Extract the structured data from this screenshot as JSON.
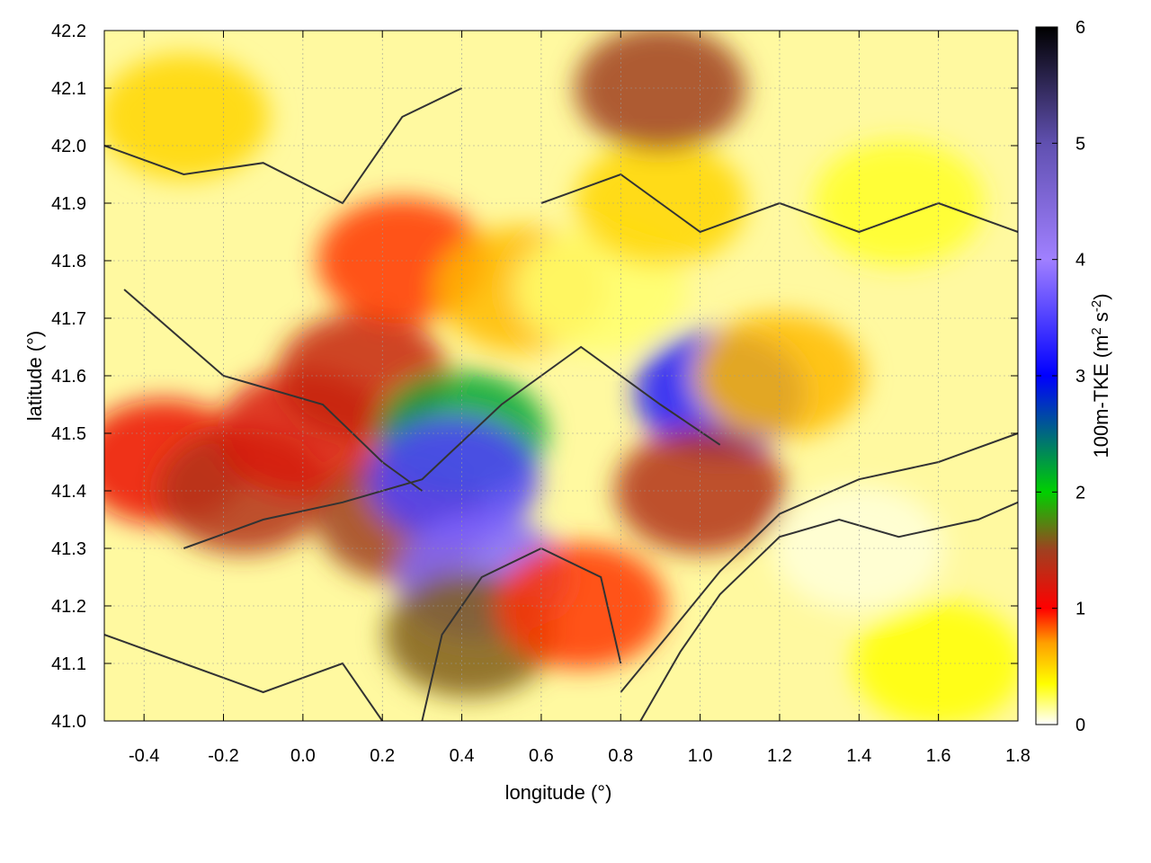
{
  "chart_data": {
    "type": "heatmap",
    "title": "",
    "xlabel": "longitude (°)",
    "ylabel": "latitude (°)",
    "xlim": [
      -0.5,
      1.8
    ],
    "ylim": [
      41.0,
      42.2
    ],
    "x_ticks": [
      -0.4,
      -0.2,
      0.0,
      0.2,
      0.4,
      0.6,
      0.8,
      1.0,
      1.2,
      1.4,
      1.6,
      1.8
    ],
    "x_tick_labels": [
      "-0.4",
      "-0.2",
      "0.0",
      "0.2",
      "0.4",
      "0.6",
      "0.8",
      "1.0",
      "1.2",
      "1.4",
      "1.6",
      "1.8"
    ],
    "y_ticks": [
      41.0,
      41.1,
      41.2,
      41.3,
      41.4,
      41.5,
      41.6,
      41.7,
      41.8,
      41.9,
      42.0,
      42.1,
      42.2
    ],
    "y_tick_labels": [
      "41.0",
      "41.1",
      "41.2",
      "41.3",
      "41.4",
      "41.5",
      "41.6",
      "41.7",
      "41.8",
      "41.9",
      "42.0",
      "42.1",
      "42.2"
    ],
    "grid": true,
    "colorbar": {
      "label_main": "100m-TKE (m",
      "label_sup1": "2",
      "label_mid": " s",
      "label_sup2": "-2",
      "label_end": ")",
      "range": [
        0,
        6
      ],
      "ticks": [
        0,
        1,
        2,
        3,
        4,
        5,
        6
      ],
      "tick_labels": [
        "0",
        "1",
        "2",
        "3",
        "4",
        "5",
        "6"
      ],
      "stops": [
        {
          "value": 0.0,
          "color": "#ffffff"
        },
        {
          "value": 0.35,
          "color": "#ffff00"
        },
        {
          "value": 0.7,
          "color": "#ffa000"
        },
        {
          "value": 1.0,
          "color": "#ff0000"
        },
        {
          "value": 1.5,
          "color": "#a04020"
        },
        {
          "value": 2.0,
          "color": "#00d000"
        },
        {
          "value": 3.0,
          "color": "#0000ff"
        },
        {
          "value": 4.0,
          "color": "#a080ff"
        },
        {
          "value": 5.0,
          "color": "#6050b0"
        },
        {
          "value": 6.0,
          "color": "#000000"
        }
      ]
    },
    "regions": [
      {
        "lon": -0.35,
        "lat": 41.45,
        "value": 1.1
      },
      {
        "lon": -0.15,
        "lat": 41.4,
        "value": 1.4
      },
      {
        "lon": 0.0,
        "lat": 41.5,
        "value": 1.2
      },
      {
        "lon": 0.15,
        "lat": 41.6,
        "value": 1.3
      },
      {
        "lon": 0.25,
        "lat": 41.35,
        "value": 1.5
      },
      {
        "lon": 0.4,
        "lat": 41.5,
        "value": 2.2
      },
      {
        "lon": 0.38,
        "lat": 41.42,
        "value": 3.5
      },
      {
        "lon": 0.45,
        "lat": 41.25,
        "value": 3.8
      },
      {
        "lon": 0.42,
        "lat": 41.15,
        "value": 1.6
      },
      {
        "lon": 0.25,
        "lat": 41.8,
        "value": 0.9
      },
      {
        "lon": 0.55,
        "lat": 41.75,
        "value": 0.6
      },
      {
        "lon": 0.75,
        "lat": 41.75,
        "value": 0.2
      },
      {
        "lon": 1.05,
        "lat": 41.57,
        "value": 3.2
      },
      {
        "lon": 1.0,
        "lat": 41.4,
        "value": 1.4
      },
      {
        "lon": 0.9,
        "lat": 41.9,
        "value": 0.5
      },
      {
        "lon": 0.9,
        "lat": 42.1,
        "value": 1.5
      },
      {
        "lon": 1.5,
        "lat": 41.9,
        "value": 0.3
      },
      {
        "lon": 1.4,
        "lat": 41.3,
        "value": 0.05
      },
      {
        "lon": 1.6,
        "lat": 41.1,
        "value": 0.35
      },
      {
        "lon": -0.3,
        "lat": 42.05,
        "value": 0.5
      },
      {
        "lon": 0.7,
        "lat": 41.2,
        "value": 0.9
      },
      {
        "lon": 1.2,
        "lat": 41.6,
        "value": 0.6
      }
    ]
  }
}
